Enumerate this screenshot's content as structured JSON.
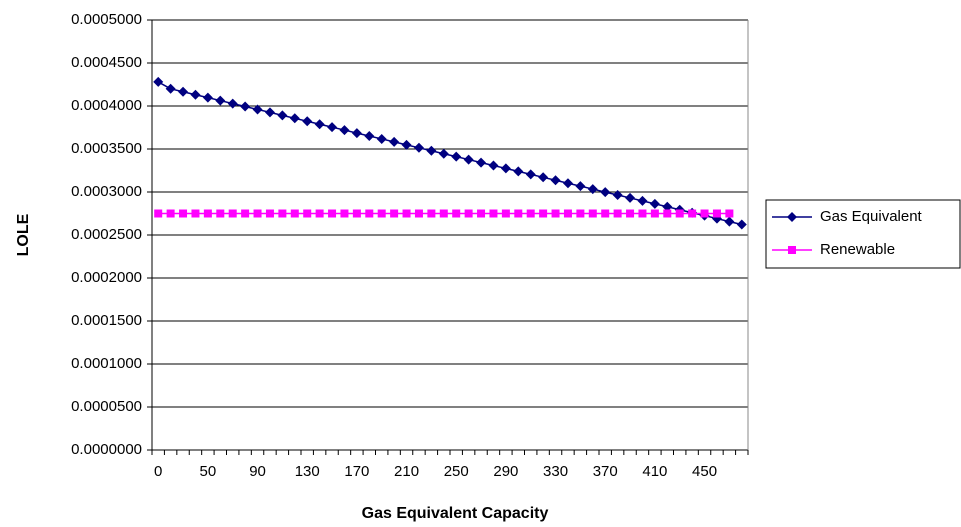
{
  "chart_data": {
    "type": "line",
    "x_label": "Gas Equivalent Capacity",
    "y_label": "LOLE",
    "categories": [
      0,
      null,
      null,
      null,
      50,
      null,
      null,
      null,
      90,
      null,
      null,
      null,
      130,
      null,
      null,
      null,
      170,
      null,
      null,
      null,
      210,
      null,
      null,
      null,
      250,
      null,
      null,
      null,
      290,
      null,
      null,
      null,
      330,
      null,
      null,
      null,
      370,
      null,
      null,
      null,
      410,
      null,
      null,
      null,
      450,
      null,
      null,
      null
    ],
    "series": [
      {
        "name": "Gas Equivalent",
        "color": "#000080",
        "marker": "diamond",
        "values": [
          0.000428,
          0.00042,
          0.0004166,
          0.0004131,
          0.0004097,
          0.0004063,
          0.0004028,
          0.0003994,
          0.000396,
          0.0003926,
          0.0003891,
          0.0003857,
          0.0003823,
          0.0003788,
          0.0003754,
          0.000372,
          0.0003685,
          0.0003651,
          0.0003617,
          0.0003583,
          0.0003548,
          0.0003514,
          0.000348,
          0.0003445,
          0.0003411,
          0.0003377,
          0.0003342,
          0.0003308,
          0.0003274,
          0.000324,
          0.0003205,
          0.0003171,
          0.0003137,
          0.0003102,
          0.0003068,
          0.0003034,
          0.0002999,
          0.0002965,
          0.0002931,
          0.0002897,
          0.0002862,
          0.0002828,
          0.0002794,
          0.0002759,
          0.0002725,
          0.0002691,
          0.0002656,
          0.0002622
        ]
      },
      {
        "name": "Renewable",
        "color": "#ff00ff",
        "marker": "square",
        "values": [
          0.000275,
          0.000275,
          0.000275,
          0.000275,
          0.000275,
          0.000275,
          0.000275,
          0.000275,
          0.000275,
          0.000275,
          0.000275,
          0.000275,
          0.000275,
          0.000275,
          0.000275,
          0.000275,
          0.000275,
          0.000275,
          0.000275,
          0.000275,
          0.000275,
          0.000275,
          0.000275,
          0.000275,
          0.000275,
          0.000275,
          0.000275,
          0.000275,
          0.000275,
          0.000275,
          0.000275,
          0.000275,
          0.000275,
          0.000275,
          0.000275,
          0.000275,
          0.000275,
          0.000275,
          0.000275,
          0.000275,
          0.000275,
          0.000275,
          0.000275,
          0.000275,
          0.000275,
          0.000275,
          0.000275,
          null
        ]
      }
    ],
    "ylim": [
      0,
      0.0005
    ],
    "yticks": [
      {
        "value": 0,
        "label": "0.0000000"
      },
      {
        "value": 5e-05,
        "label": "0.0000500"
      },
      {
        "value": 0.0001,
        "label": "0.0001000"
      },
      {
        "value": 0.00015,
        "label": "0.0001500"
      },
      {
        "value": 0.0002,
        "label": "0.0002000"
      },
      {
        "value": 0.00025,
        "label": "0.0002500"
      },
      {
        "value": 0.0003,
        "label": "0.0003000"
      },
      {
        "value": 0.00035,
        "label": "0.0003500"
      },
      {
        "value": 0.0004,
        "label": "0.0004000"
      },
      {
        "value": 0.00045,
        "label": "0.0004500"
      },
      {
        "value": 0.0005,
        "label": "0.0005000"
      }
    ],
    "grid": true,
    "legend": "right"
  }
}
